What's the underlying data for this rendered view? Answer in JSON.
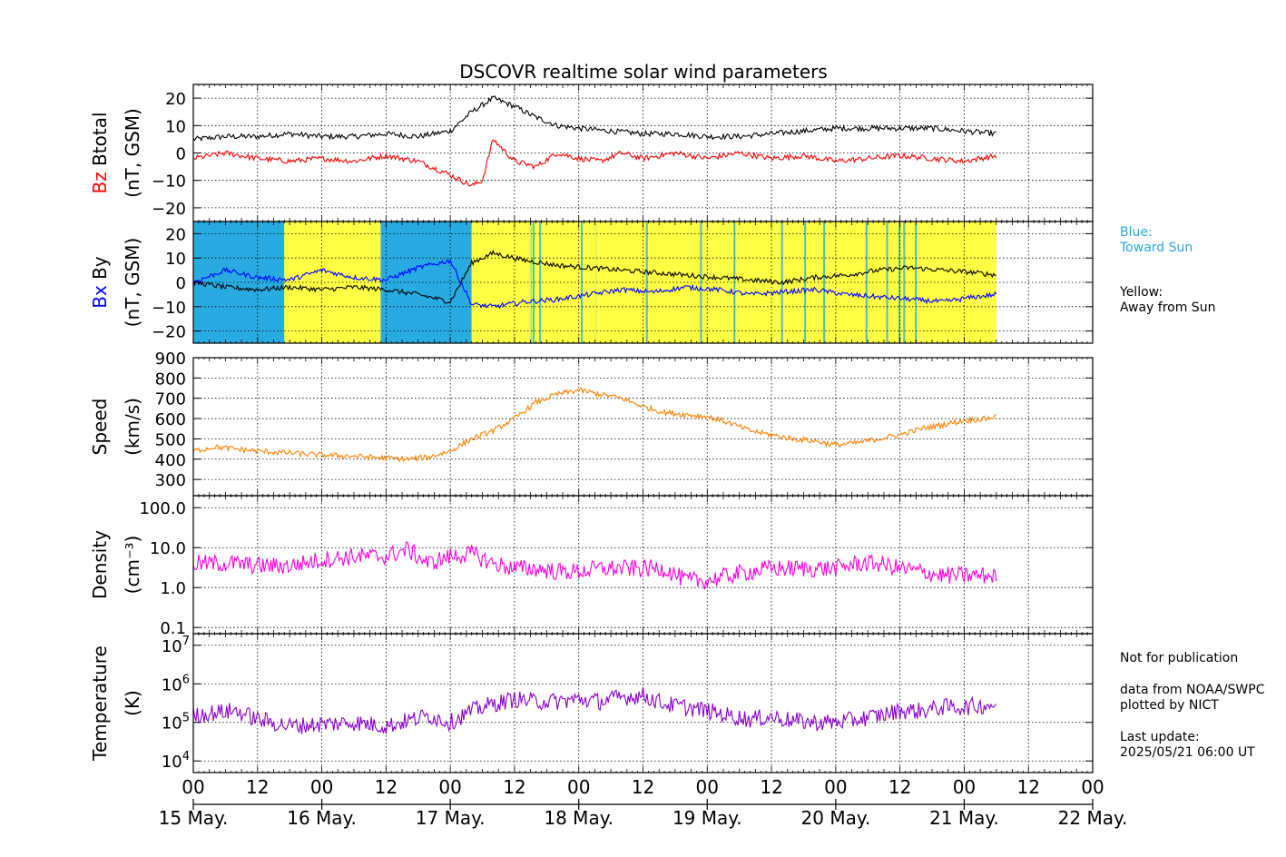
{
  "chart_data": {
    "type": "line",
    "title": "DSCOVR realtime solar wind parameters",
    "x_ticks": [
      "00",
      "12",
      "00",
      "12",
      "00",
      "12",
      "00",
      "12",
      "00",
      "12",
      "00",
      "12",
      "00",
      "12",
      "00"
    ],
    "x_days": [
      "15 May.",
      "16 May.",
      "17 May.",
      "18 May.",
      "19 May.",
      "20 May.",
      "21 May.",
      "22 May."
    ],
    "x_range_hours": [
      0,
      168
    ],
    "data_end_hour": 150,
    "panels": [
      {
        "id": "btotal-bz",
        "ylabel_top": "Btotal",
        "ylabel_series": "Bz",
        "ylabel_unit": "(nT, GSM)",
        "ylim": [
          -25,
          25
        ],
        "ticks": [
          "20",
          "10",
          "0",
          "−10",
          "−20"
        ],
        "tick_values": [
          20,
          10,
          0,
          -10,
          -20
        ],
        "scale": "linear",
        "series": [
          {
            "name": "Btotal",
            "color": "#000000",
            "hours": [
              0,
              6,
              12,
              18,
              24,
              30,
              36,
              42,
              48,
              52,
              56,
              60,
              64,
              68,
              72,
              78,
              84,
              90,
              96,
              102,
              108,
              114,
              120,
              126,
              132,
              138,
              144,
              150
            ],
            "values": [
              5,
              6,
              6,
              7,
              6,
              6,
              7,
              6,
              8,
              15,
              20,
              17,
              13,
              10,
              9,
              8,
              7,
              7,
              6,
              6,
              7,
              8,
              9,
              9,
              9,
              9,
              8,
              7
            ]
          },
          {
            "name": "Bz",
            "color": "#ff0000",
            "hours": [
              0,
              6,
              12,
              18,
              24,
              30,
              36,
              42,
              48,
              50,
              52,
              54,
              56,
              60,
              64,
              68,
              72,
              76,
              80,
              84,
              90,
              96,
              102,
              108,
              114,
              120,
              126,
              132,
              138,
              144,
              150
            ],
            "values": [
              -2,
              0,
              -2,
              -3,
              -2,
              -3,
              -1,
              -3,
              -8,
              -10,
              -12,
              -10,
              5,
              -3,
              -5,
              0,
              -2,
              -3,
              0,
              -2,
              0,
              -2,
              0,
              -2,
              -1,
              -3,
              -2,
              -1,
              -2,
              -3,
              -1
            ]
          }
        ]
      },
      {
        "id": "by-bx",
        "ylabel_series": "Bx",
        "ylabel_top": "By",
        "ylabel_unit": "(nT, GSM)",
        "ylim": [
          -25,
          25
        ],
        "ticks": [
          "20",
          "10",
          "0",
          "−10",
          "−20"
        ],
        "tick_values": [
          20,
          10,
          0,
          -10,
          -20
        ],
        "scale": "linear",
        "background_sectors": [
          {
            "from": 0,
            "to": 17,
            "color": "#29abe2"
          },
          {
            "from": 17,
            "to": 35,
            "color": "#ffff44"
          },
          {
            "from": 35,
            "to": 52,
            "color": "#29abe2"
          },
          {
            "from": 52,
            "to": 150,
            "color": "#ffff44"
          }
        ],
        "series": [
          {
            "name": "By",
            "color": "#000000",
            "hours": [
              0,
              6,
              12,
              18,
              24,
              30,
              36,
              42,
              48,
              52,
              56,
              62,
              68,
              74,
              80,
              86,
              92,
              98,
              104,
              110,
              116,
              122,
              128,
              134,
              140,
              146,
              150
            ],
            "values": [
              0,
              -2,
              -3,
              -2,
              -3,
              -2,
              -3,
              -5,
              -8,
              8,
              12,
              9,
              7,
              6,
              5,
              4,
              3,
              2,
              1,
              0,
              2,
              3,
              5,
              6,
              5,
              4,
              3
            ]
          },
          {
            "name": "Bx",
            "color": "#0000ff",
            "hours": [
              0,
              6,
              12,
              18,
              24,
              30,
              36,
              42,
              48,
              52,
              56,
              62,
              68,
              74,
              80,
              86,
              92,
              98,
              104,
              110,
              116,
              122,
              128,
              134,
              140,
              146,
              150
            ],
            "values": [
              0,
              5,
              2,
              1,
              5,
              2,
              1,
              6,
              9,
              -9,
              -10,
              -8,
              -7,
              -5,
              -3,
              -4,
              -2,
              -3,
              -5,
              -4,
              -3,
              -5,
              -6,
              -7,
              -8,
              -6,
              -5
            ]
          }
        ]
      },
      {
        "id": "speed",
        "ylabel_top": "Speed",
        "ylabel_unit": "(km/s)",
        "ylim": [
          220,
          900
        ],
        "ticks": [
          "900",
          "800",
          "700",
          "600",
          "500",
          "400",
          "300"
        ],
        "tick_values": [
          900,
          800,
          700,
          600,
          500,
          400,
          300
        ],
        "scale": "linear",
        "series": [
          {
            "name": "Speed",
            "color": "#ff8000",
            "hours": [
              0,
              4,
              8,
              12,
              18,
              24,
              30,
              36,
              40,
              44,
              48,
              52,
              56,
              60,
              64,
              68,
              72,
              76,
              80,
              84,
              88,
              92,
              96,
              100,
              104,
              108,
              112,
              116,
              120,
              124,
              128,
              132,
              136,
              140,
              144,
              148,
              150
            ],
            "values": [
              440,
              460,
              450,
              440,
              430,
              420,
              415,
              405,
              400,
              410,
              440,
              500,
              540,
              600,
              680,
              720,
              740,
              720,
              700,
              660,
              630,
              620,
              610,
              580,
              540,
              520,
              500,
              490,
              470,
              480,
              500,
              520,
              550,
              570,
              590,
              600,
              610
            ]
          }
        ]
      },
      {
        "id": "density",
        "ylabel_top": "Density",
        "ylabel_unit": "(cm⁻³)",
        "ylim": [
          0.07,
          200
        ],
        "ticks": [
          "100.0",
          "10.0",
          "1.0",
          "0.1"
        ],
        "tick_values": [
          100,
          10,
          1,
          0.1
        ],
        "scale": "log",
        "series": [
          {
            "name": "Density",
            "color": "#ff00dd",
            "hours": [
              0,
              4,
              8,
              12,
              18,
              24,
              30,
              36,
              40,
              44,
              48,
              52,
              56,
              60,
              64,
              68,
              72,
              76,
              80,
              84,
              88,
              92,
              96,
              100,
              104,
              108,
              112,
              116,
              120,
              124,
              128,
              132,
              136,
              140,
              144,
              148,
              150
            ],
            "values": [
              4,
              4,
              4,
              3.5,
              3.5,
              5,
              6,
              6,
              9,
              4,
              6,
              7,
              4,
              3,
              3,
              2.5,
              2.5,
              3,
              3,
              3,
              3,
              1.5,
              1.5,
              2,
              2.5,
              3,
              3,
              3,
              3,
              4,
              4,
              3,
              2.5,
              2,
              2,
              2,
              2
            ]
          }
        ]
      },
      {
        "id": "temperature",
        "ylabel_top": "Temperature",
        "ylabel_unit": "(K)",
        "ylim": [
          5000,
          20000000
        ],
        "ticks": [
          "10^7",
          "10^6",
          "10^5",
          "10^4"
        ],
        "tick_values": [
          10000000,
          1000000,
          100000,
          10000
        ],
        "scale": "log",
        "series": [
          {
            "name": "Temperature",
            "color": "#8800cc",
            "hours": [
              0,
              4,
              8,
              12,
              18,
              24,
              30,
              36,
              40,
              44,
              48,
              52,
              56,
              60,
              64,
              68,
              72,
              76,
              80,
              84,
              88,
              92,
              96,
              100,
              104,
              108,
              112,
              116,
              120,
              124,
              128,
              132,
              136,
              140,
              144,
              148,
              150
            ],
            "values": [
              150000,
              180000,
              200000,
              120000,
              80000,
              90000,
              100000,
              80000,
              110000,
              150000,
              100000,
              200000,
              300000,
              400000,
              350000,
              350000,
              400000,
              350000,
              450000,
              500000,
              300000,
              250000,
              200000,
              150000,
              120000,
              140000,
              110000,
              100000,
              100000,
              120000,
              150000,
              200000,
              200000,
              250000,
              250000,
              280000,
              300000
            ]
          }
        ]
      }
    ]
  },
  "legend_notes": {
    "blue_title": "Blue:",
    "blue_text": "Toward Sun",
    "yellow_title": "Yellow:",
    "yellow_text": "Away from Sun",
    "blue_color": "#29abe2"
  },
  "footer_notes": {
    "line1": "Not for publication",
    "line2": "data from NOAA/SWPC",
    "line3": "plotted by NICT",
    "line4": "Last update:",
    "line5": "2025/05/21 06:00 UT"
  }
}
